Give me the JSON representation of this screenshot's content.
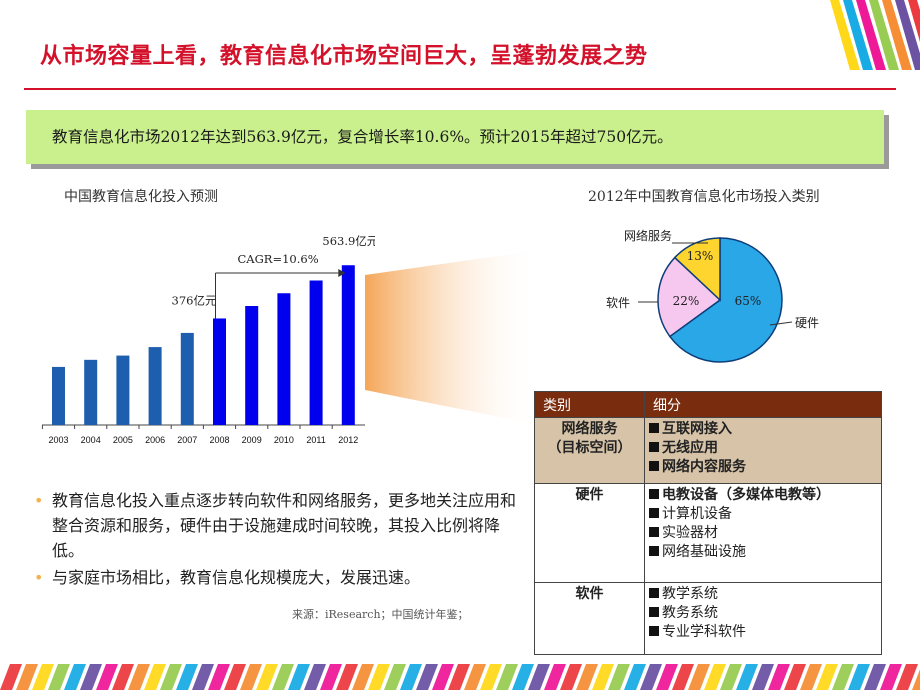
{
  "slide": {
    "title": "从市场容量上看，教育信息化市场空间巨大，呈蓬勃发展之势",
    "summary": "教育信息化市场2012年达到563.9亿元，复合增长率10.6%。预计2015年超过750亿元。",
    "source": "来源：iResearch；中国统计年鉴；"
  },
  "chart_data": [
    {
      "type": "bar",
      "title": "中国教育信息化投入预测",
      "categories": [
        "2003",
        "2004",
        "2005",
        "2006",
        "2007",
        "2008",
        "2009",
        "2010",
        "2011",
        "2012"
      ],
      "values": [
        205,
        230,
        245,
        275,
        325,
        376,
        420,
        465,
        510,
        563.9
      ],
      "colors": [
        "#1d5fae",
        "#1d5fae",
        "#1d5fae",
        "#1d5fae",
        "#1d5fae",
        "#0000ee",
        "#0000ee",
        "#0000ee",
        "#0000ee",
        "#0000ee"
      ],
      "ylim": [
        0,
        600
      ],
      "grid": false,
      "annotations": {
        "start_label": "376亿元",
        "end_label": "563.9亿元",
        "cagr_label": "CAGR=10.6%"
      }
    },
    {
      "type": "pie",
      "title": "2012年中国教育信息化市场投入类别",
      "slices": [
        {
          "name": "硬件",
          "value": 65,
          "label": "65%",
          "color": "#2aa7e6"
        },
        {
          "name": "软件",
          "value": 22,
          "label": "22%",
          "color": "#f7c8ef"
        },
        {
          "name": "网络服务",
          "value": 13,
          "label": "13%",
          "color": "#fed52e"
        }
      ]
    }
  ],
  "table": {
    "headers": [
      "类别",
      "细分"
    ],
    "rows": [
      {
        "category": [
          "网络服务",
          "（目标空间）"
        ],
        "shaded": true,
        "items": [
          {
            "text": "互联网接入",
            "bold": true
          },
          {
            "text": "无线应用",
            "bold": true
          },
          {
            "text": "网络内容服务",
            "bold": true
          }
        ]
      },
      {
        "category": [
          "硬件"
        ],
        "shaded": false,
        "items": [
          {
            "text": "电教设备（多媒体电教等）",
            "bold": true
          },
          {
            "text": "计算机设备",
            "bold": false
          },
          {
            "text": "实验器材",
            "bold": false
          },
          {
            "text": "网络基础设施",
            "bold": false
          }
        ]
      },
      {
        "category": [
          "软件"
        ],
        "shaded": false,
        "items": [
          {
            "text": "教学系统",
            "bold": false
          },
          {
            "text": "教务系统",
            "bold": false
          },
          {
            "text": "专业学科软件",
            "bold": false
          }
        ]
      }
    ]
  },
  "bullets": [
    "教育信息化投入重点逐步转向软件和网络服务，更多地关注应用和整合资源和服务，硬件由于设施建成时间较晚，其投入比例将降低。",
    "与家庭市场相比，教育信息化规模庞大，发展迅速。"
  ],
  "theme": {
    "accent": "#d4112a",
    "summary_bg": "#c9f08c",
    "header_bg": "#7a2c0e",
    "row_shade": "#d6c3a8",
    "bullet_color": "#f3b24b",
    "stripe_colors": [
      "#e9262b",
      "#f58220",
      "#ffd400",
      "#8dc63f",
      "#00a2e0",
      "#5b3f99",
      "#ec008c",
      "#ffffff"
    ]
  }
}
